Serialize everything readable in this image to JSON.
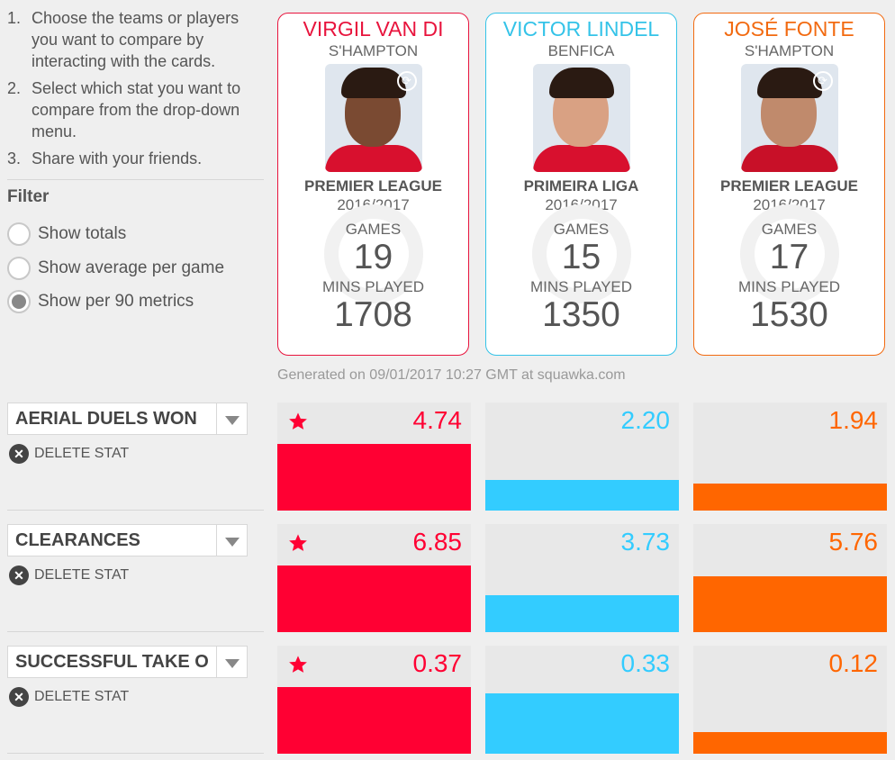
{
  "instructions": [
    {
      "num": "1.",
      "text": "Choose the teams or players you want to compare by interacting with the cards."
    },
    {
      "num": "2.",
      "text": "Select which stat you want to compare from the drop-down menu."
    },
    {
      "num": "3.",
      "text": "Share with your friends."
    }
  ],
  "filter": {
    "title": "Filter",
    "options": [
      {
        "label": "Show totals",
        "checked": false
      },
      {
        "label": "Show average per game",
        "checked": false
      },
      {
        "label": "Show per 90 metrics",
        "checked": true
      }
    ]
  },
  "players": [
    {
      "name": "VIRGIL VAN DI",
      "team": "S'HAMPTON",
      "league": "PREMIER LEAGUE",
      "season": "2016/2017",
      "games_label": "GAMES",
      "games": "19",
      "mins_label": "MINS PLAYED",
      "mins": "1708",
      "color": "#e8143d",
      "shirt": "#d8102e",
      "skin": "#7a4a32",
      "badge": true
    },
    {
      "name": "VICTOR LINDEL",
      "team": "BENFICA",
      "league": "PRIMEIRA LIGA",
      "season": "2016/2017",
      "games_label": "GAMES",
      "games": "15",
      "mins_label": "MINS PLAYED",
      "mins": "1350",
      "color": "#34c3e8",
      "shirt": "#d8102e",
      "skin": "#d9a183",
      "badge": false
    },
    {
      "name": "JOSÉ FONTE",
      "team": "S'HAMPTON",
      "league": "PREMIER LEAGUE",
      "season": "2016/2017",
      "games_label": "GAMES",
      "games": "17",
      "mins_label": "MINS PLAYED",
      "mins": "1530",
      "color": "#f26a10",
      "shirt": "#c81028",
      "skin": "#c08a6c",
      "badge": true
    }
  ],
  "generated": "Generated on 09/01/2017 10:27 GMT at squawka.com",
  "delete_label": "DELETE STAT",
  "stats": [
    {
      "name": "AERIAL DUELS WON",
      "values": [
        "4.74",
        "2.20",
        "1.94"
      ],
      "fill_fraction": [
        0.62,
        0.28,
        0.25
      ],
      "star_index": 0
    },
    {
      "name": "CLEARANCES",
      "values": [
        "6.85",
        "3.73",
        "5.76"
      ],
      "fill_fraction": [
        0.62,
        0.34,
        0.52
      ],
      "star_index": 0
    },
    {
      "name": "SUCCESSFUL TAKE O",
      "values": [
        "0.37",
        "0.33",
        "0.12"
      ],
      "fill_fraction": [
        0.62,
        0.56,
        0.2
      ],
      "star_index": 0
    }
  ],
  "colors": {
    "red": "#ff0033",
    "blue": "#33ccff",
    "orange": "#ff6600"
  }
}
